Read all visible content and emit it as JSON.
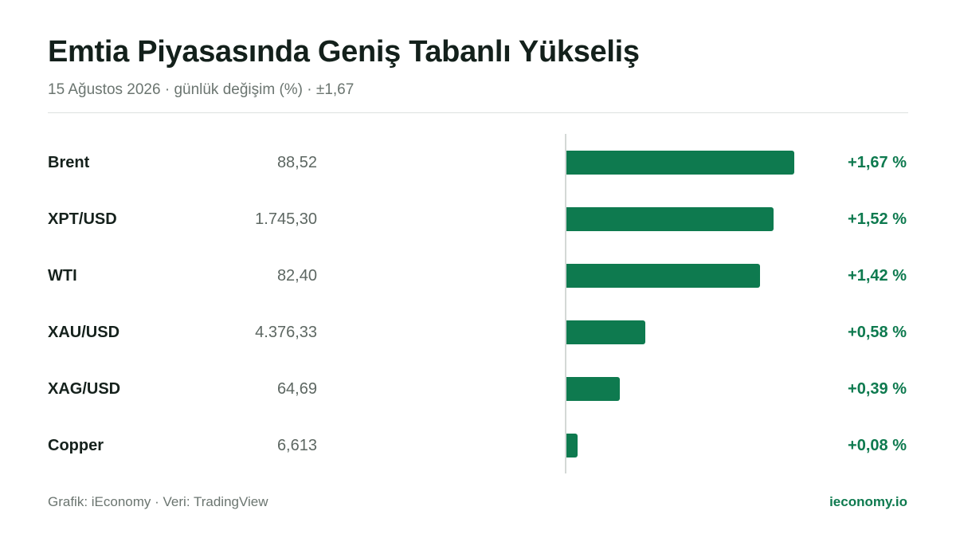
{
  "header": {
    "title": "Emtia Piyasasında Geniş Tabanlı Yükseliş",
    "subtitle": "15 Ağustos 2026 · günlük değişim (%) · ±1,67"
  },
  "footer": {
    "source": "Grafik: iEconomy · Veri: TradingView",
    "brand": "ieconomy.io"
  },
  "colors": {
    "positive": "#0e7a4f",
    "text": "#13201b",
    "muted": "#6b7570"
  },
  "chart_data": {
    "type": "bar",
    "orientation": "horizontal",
    "title": "Emtia Piyasasında Geniş Tabanlı Yükseliş",
    "subtitle": "15 Ağustos 2026 · günlük değişim (%) · ±1,67",
    "xlim": [
      -1.67,
      1.67
    ],
    "grid": false,
    "categories": [
      "Brent",
      "XPT/USD",
      "WTI",
      "XAU/USD",
      "XAG/USD",
      "Copper"
    ],
    "prices": [
      "88,52",
      "1.745,30",
      "82,40",
      "4.376,33",
      "64,69",
      "6,613"
    ],
    "values": [
      1.67,
      1.52,
      1.42,
      0.58,
      0.39,
      0.08
    ],
    "value_labels": [
      "+1,67 %",
      "+1,52 %",
      "+1,42 %",
      "+0,58 %",
      "+0,39 %",
      "+0,08 %"
    ]
  }
}
